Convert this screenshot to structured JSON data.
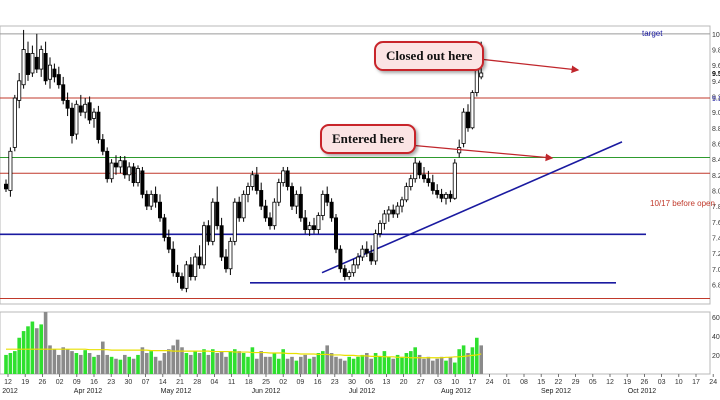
{
  "chart_data": {
    "type": "candlestick",
    "price_axis": {
      "ylim": [
        6.55,
        10.1
      ],
      "ticks": [
        "10.",
        "9.8",
        "9.6",
        "9.4",
        "9.2",
        "9.0",
        "8.8",
        "8.6",
        "8.4",
        "8.2",
        "8.0",
        "7.8",
        "7.6",
        "7.4",
        "7.2",
        "7.0",
        "6.8"
      ]
    },
    "volume_axis": {
      "ylim": [
        0,
        65
      ],
      "ticks": [
        "60",
        "40",
        "20"
      ]
    },
    "x_ticks": [
      "12",
      "19",
      "26",
      "02",
      "09",
      "16",
      "23",
      "30",
      "07",
      "14",
      "21",
      "28",
      "04",
      "11",
      "18",
      "25",
      "02",
      "09",
      "16",
      "23",
      "30",
      "06",
      "13",
      "20",
      "27",
      "03",
      "10",
      "17",
      "24",
      "01",
      "08",
      "15",
      "22",
      "29",
      "05",
      "12",
      "19",
      "26",
      "03",
      "10",
      "17",
      "24"
    ],
    "month_labels": [
      "2012",
      "Apr 2012",
      "May 2012",
      "Jun 2012",
      "Jul 2012",
      "Aug 2012",
      "Sep 2012",
      "Oct 2012"
    ],
    "candles": [
      {
        "o": 8.08,
        "h": 8.14,
        "l": 7.98,
        "c": 8.02
      },
      {
        "o": 8.0,
        "h": 8.55,
        "l": 7.92,
        "c": 8.5
      },
      {
        "o": 8.55,
        "h": 9.22,
        "l": 8.5,
        "c": 9.18
      },
      {
        "o": 9.15,
        "h": 9.5,
        "l": 9.05,
        "c": 9.4
      },
      {
        "o": 9.35,
        "h": 10.05,
        "l": 9.3,
        "c": 9.8
      },
      {
        "o": 9.75,
        "h": 9.9,
        "l": 9.4,
        "c": 9.48
      },
      {
        "o": 9.5,
        "h": 9.85,
        "l": 9.45,
        "c": 9.75
      },
      {
        "o": 9.7,
        "h": 10.0,
        "l": 9.5,
        "c": 9.55
      },
      {
        "o": 9.55,
        "h": 9.85,
        "l": 9.45,
        "c": 9.8
      },
      {
        "o": 9.75,
        "h": 9.9,
        "l": 9.35,
        "c": 9.4
      },
      {
        "o": 9.42,
        "h": 9.7,
        "l": 9.3,
        "c": 9.6
      },
      {
        "o": 9.55,
        "h": 9.62,
        "l": 9.38,
        "c": 9.45
      },
      {
        "o": 9.48,
        "h": 9.58,
        "l": 9.3,
        "c": 9.35
      },
      {
        "o": 9.35,
        "h": 9.45,
        "l": 9.1,
        "c": 9.15
      },
      {
        "o": 9.15,
        "h": 9.25,
        "l": 8.95,
        "c": 9.05
      },
      {
        "o": 9.05,
        "h": 9.12,
        "l": 8.6,
        "c": 8.7
      },
      {
        "o": 8.72,
        "h": 9.15,
        "l": 8.65,
        "c": 9.1
      },
      {
        "o": 9.08,
        "h": 9.22,
        "l": 8.95,
        "c": 9.0
      },
      {
        "o": 9.0,
        "h": 9.18,
        "l": 8.92,
        "c": 9.1
      },
      {
        "o": 9.12,
        "h": 9.2,
        "l": 8.85,
        "c": 8.9
      },
      {
        "o": 8.92,
        "h": 9.05,
        "l": 8.8,
        "c": 9.0
      },
      {
        "o": 9.0,
        "h": 9.08,
        "l": 8.6,
        "c": 8.65
      },
      {
        "o": 8.65,
        "h": 8.72,
        "l": 8.45,
        "c": 8.5
      },
      {
        "o": 8.5,
        "h": 8.55,
        "l": 8.1,
        "c": 8.15
      },
      {
        "o": 8.15,
        "h": 8.4,
        "l": 8.1,
        "c": 8.35
      },
      {
        "o": 8.35,
        "h": 8.45,
        "l": 8.2,
        "c": 8.3
      },
      {
        "o": 8.3,
        "h": 8.44,
        "l": 8.22,
        "c": 8.38
      },
      {
        "o": 8.38,
        "h": 8.44,
        "l": 8.15,
        "c": 8.2
      },
      {
        "o": 8.2,
        "h": 8.36,
        "l": 8.12,
        "c": 8.3
      },
      {
        "o": 8.3,
        "h": 8.35,
        "l": 8.05,
        "c": 8.1
      },
      {
        "o": 8.1,
        "h": 8.32,
        "l": 8.05,
        "c": 8.28
      },
      {
        "o": 8.25,
        "h": 8.3,
        "l": 7.9,
        "c": 7.95
      },
      {
        "o": 7.95,
        "h": 8.0,
        "l": 7.75,
        "c": 7.8
      },
      {
        "o": 7.8,
        "h": 8.0,
        "l": 7.75,
        "c": 7.95
      },
      {
        "o": 7.95,
        "h": 8.05,
        "l": 7.78,
        "c": 7.85
      },
      {
        "o": 7.85,
        "h": 7.95,
        "l": 7.6,
        "c": 7.65
      },
      {
        "o": 7.65,
        "h": 7.7,
        "l": 7.35,
        "c": 7.4
      },
      {
        "o": 7.4,
        "h": 7.5,
        "l": 7.2,
        "c": 7.25
      },
      {
        "o": 7.25,
        "h": 7.35,
        "l": 6.9,
        "c": 6.95
      },
      {
        "o": 6.95,
        "h": 7.05,
        "l": 6.82,
        "c": 6.9
      },
      {
        "o": 6.9,
        "h": 6.95,
        "l": 6.72,
        "c": 6.75
      },
      {
        "o": 6.75,
        "h": 7.1,
        "l": 6.7,
        "c": 7.05
      },
      {
        "o": 7.05,
        "h": 7.15,
        "l": 6.85,
        "c": 6.9
      },
      {
        "o": 6.9,
        "h": 7.2,
        "l": 6.85,
        "c": 7.15
      },
      {
        "o": 7.15,
        "h": 7.3,
        "l": 7.0,
        "c": 7.05
      },
      {
        "o": 7.05,
        "h": 7.6,
        "l": 7.0,
        "c": 7.55
      },
      {
        "o": 7.55,
        "h": 7.62,
        "l": 7.3,
        "c": 7.35
      },
      {
        "o": 7.35,
        "h": 7.9,
        "l": 7.3,
        "c": 7.85
      },
      {
        "o": 7.85,
        "h": 8.05,
        "l": 7.5,
        "c": 7.55
      },
      {
        "o": 7.55,
        "h": 7.65,
        "l": 7.1,
        "c": 7.15
      },
      {
        "o": 7.15,
        "h": 7.25,
        "l": 6.95,
        "c": 7.0
      },
      {
        "o": 7.0,
        "h": 7.4,
        "l": 6.92,
        "c": 7.35
      },
      {
        "o": 7.35,
        "h": 7.9,
        "l": 7.3,
        "c": 7.85
      },
      {
        "o": 7.85,
        "h": 7.92,
        "l": 7.6,
        "c": 7.65
      },
      {
        "o": 7.65,
        "h": 8.0,
        "l": 7.6,
        "c": 7.95
      },
      {
        "o": 7.95,
        "h": 8.1,
        "l": 7.85,
        "c": 8.05
      },
      {
        "o": 8.05,
        "h": 8.25,
        "l": 8.0,
        "c": 8.2
      },
      {
        "o": 8.2,
        "h": 8.3,
        "l": 7.95,
        "c": 8.0
      },
      {
        "o": 8.0,
        "h": 8.1,
        "l": 7.75,
        "c": 7.8
      },
      {
        "o": 7.8,
        "h": 7.88,
        "l": 7.6,
        "c": 7.65
      },
      {
        "o": 7.65,
        "h": 7.72,
        "l": 7.5,
        "c": 7.55
      },
      {
        "o": 7.55,
        "h": 7.9,
        "l": 7.5,
        "c": 7.85
      },
      {
        "o": 7.85,
        "h": 8.15,
        "l": 7.8,
        "c": 8.1
      },
      {
        "o": 8.1,
        "h": 8.3,
        "l": 8.05,
        "c": 8.25
      },
      {
        "o": 8.25,
        "h": 8.3,
        "l": 8.0,
        "c": 8.05
      },
      {
        "o": 8.05,
        "h": 8.1,
        "l": 7.75,
        "c": 7.8
      },
      {
        "o": 7.8,
        "h": 8.0,
        "l": 7.7,
        "c": 7.95
      },
      {
        "o": 7.95,
        "h": 8.05,
        "l": 7.6,
        "c": 7.65
      },
      {
        "o": 7.65,
        "h": 7.75,
        "l": 7.45,
        "c": 7.5
      },
      {
        "o": 7.5,
        "h": 7.6,
        "l": 7.42,
        "c": 7.55
      },
      {
        "o": 7.55,
        "h": 7.65,
        "l": 7.45,
        "c": 7.5
      },
      {
        "o": 7.5,
        "h": 7.72,
        "l": 7.45,
        "c": 7.68
      },
      {
        "o": 7.68,
        "h": 8.0,
        "l": 7.62,
        "c": 7.95
      },
      {
        "o": 7.95,
        "h": 8.05,
        "l": 7.8,
        "c": 7.85
      },
      {
        "o": 7.85,
        "h": 7.9,
        "l": 7.6,
        "c": 7.65
      },
      {
        "o": 7.65,
        "h": 7.7,
        "l": 7.2,
        "c": 7.25
      },
      {
        "o": 7.25,
        "h": 7.3,
        "l": 6.95,
        "c": 7.0
      },
      {
        "o": 7.0,
        "h": 7.05,
        "l": 6.85,
        "c": 6.9
      },
      {
        "o": 6.9,
        "h": 6.98,
        "l": 6.86,
        "c": 6.95
      },
      {
        "o": 6.95,
        "h": 7.12,
        "l": 6.9,
        "c": 7.05
      },
      {
        "o": 7.05,
        "h": 7.2,
        "l": 7.0,
        "c": 7.15
      },
      {
        "o": 7.15,
        "h": 7.3,
        "l": 7.1,
        "c": 7.25
      },
      {
        "o": 7.25,
        "h": 7.35,
        "l": 7.15,
        "c": 7.2
      },
      {
        "o": 7.2,
        "h": 7.3,
        "l": 7.05,
        "c": 7.1
      },
      {
        "o": 7.1,
        "h": 7.5,
        "l": 7.05,
        "c": 7.45
      },
      {
        "o": 7.45,
        "h": 7.62,
        "l": 7.4,
        "c": 7.58
      },
      {
        "o": 7.58,
        "h": 7.75,
        "l": 7.5,
        "c": 7.7
      },
      {
        "o": 7.7,
        "h": 7.8,
        "l": 7.6,
        "c": 7.75
      },
      {
        "o": 7.75,
        "h": 7.82,
        "l": 7.65,
        "c": 7.7
      },
      {
        "o": 7.7,
        "h": 7.85,
        "l": 7.65,
        "c": 7.8
      },
      {
        "o": 7.8,
        "h": 7.92,
        "l": 7.72,
        "c": 7.88
      },
      {
        "o": 7.88,
        "h": 8.1,
        "l": 7.85,
        "c": 8.05
      },
      {
        "o": 8.05,
        "h": 8.2,
        "l": 8.0,
        "c": 8.15
      },
      {
        "o": 8.15,
        "h": 8.42,
        "l": 8.1,
        "c": 8.35
      },
      {
        "o": 8.35,
        "h": 8.38,
        "l": 8.15,
        "c": 8.2
      },
      {
        "o": 8.2,
        "h": 8.3,
        "l": 8.1,
        "c": 8.15
      },
      {
        "o": 8.15,
        "h": 8.25,
        "l": 8.05,
        "c": 8.1
      },
      {
        "o": 8.1,
        "h": 8.2,
        "l": 7.95,
        "c": 8.0
      },
      {
        "o": 8.0,
        "h": 8.08,
        "l": 7.9,
        "c": 7.95
      },
      {
        "o": 7.95,
        "h": 8.02,
        "l": 7.85,
        "c": 7.9
      },
      {
        "o": 7.9,
        "h": 7.98,
        "l": 7.82,
        "c": 7.95
      },
      {
        "o": 7.95,
        "h": 8.0,
        "l": 7.85,
        "c": 7.9
      },
      {
        "o": 7.9,
        "h": 8.4,
        "l": 7.88,
        "c": 8.35
      },
      {
        "o": 8.48,
        "h": 8.65,
        "l": 8.42,
        "c": 8.55
      },
      {
        "o": 8.6,
        "h": 9.05,
        "l": 8.55,
        "c": 9.0
      },
      {
        "o": 9.0,
        "h": 9.1,
        "l": 8.75,
        "c": 8.8
      },
      {
        "o": 8.8,
        "h": 9.28,
        "l": 8.78,
        "c": 9.25
      },
      {
        "o": 9.25,
        "h": 9.7,
        "l": 9.2,
        "c": 9.6
      },
      {
        "o": 9.45,
        "h": 9.9,
        "l": 9.42,
        "c": 9.5
      }
    ],
    "volume": [
      20,
      22,
      24,
      38,
      45,
      50,
      55,
      48,
      52,
      65,
      30,
      26,
      20,
      28,
      26,
      24,
      22,
      20,
      25,
      22,
      18,
      20,
      34,
      20,
      18,
      16,
      15,
      20,
      18,
      16,
      20,
      28,
      22,
      24,
      18,
      14,
      22,
      26,
      30,
      36,
      28,
      22,
      20,
      24,
      22,
      26,
      20,
      26,
      22,
      24,
      18,
      24,
      26,
      24,
      22,
      18,
      28,
      16,
      24,
      18,
      18,
      22,
      16,
      26,
      16,
      18,
      14,
      18,
      20,
      16,
      18,
      22,
      24,
      30,
      22,
      18,
      16,
      14,
      18,
      16,
      18,
      20,
      22,
      16,
      22,
      18,
      24,
      18,
      16,
      20,
      18,
      22,
      24,
      28,
      20,
      16,
      18,
      14,
      16,
      18,
      14,
      18,
      12,
      26,
      30,
      22,
      28,
      38,
      30
    ],
    "volume_bar_colors": [
      "G",
      "G",
      "G",
      "G",
      "G",
      "G",
      "G",
      "R",
      "G",
      "R",
      "R",
      "R",
      "R",
      "R",
      "R",
      "R",
      "G",
      "R",
      "G",
      "R",
      "G",
      "R",
      "R",
      "R",
      "G",
      "R",
      "G",
      "R",
      "G",
      "R",
      "G",
      "R",
      "R",
      "G",
      "R",
      "R",
      "R",
      "R",
      "R",
      "R",
      "R",
      "G",
      "R",
      "G",
      "R",
      "G",
      "R",
      "G",
      "R",
      "R",
      "R",
      "G",
      "G",
      "R",
      "G",
      "G",
      "G",
      "R",
      "R",
      "R",
      "R",
      "G",
      "G",
      "G",
      "R",
      "R",
      "G",
      "R",
      "R",
      "G",
      "R",
      "G",
      "G",
      "R",
      "R",
      "R",
      "R",
      "R",
      "G",
      "G",
      "G",
      "G",
      "R",
      "R",
      "G",
      "G",
      "G",
      "G",
      "R",
      "G",
      "G",
      "G",
      "G",
      "G",
      "R",
      "R",
      "R",
      "R",
      "R",
      "R",
      "G",
      "R",
      "G",
      "G",
      "G",
      "R",
      "G",
      "G",
      "R"
    ],
    "volume_ma": [
      26,
      26,
      26,
      26,
      26,
      26,
      26,
      26,
      26,
      26,
      26,
      26,
      26,
      26,
      26,
      26,
      26,
      26,
      26,
      25.5,
      25.5,
      25.5,
      25.5,
      25.5,
      25,
      25,
      25,
      25,
      25,
      25,
      25,
      25,
      25,
      24.5,
      24.5,
      24.5,
      24.5,
      24.5,
      24,
      24,
      24,
      24,
      24,
      24,
      24,
      24,
      24,
      23.5,
      23.5,
      23.5,
      23.5,
      23.5,
      23,
      23,
      23,
      23,
      22.5,
      22.5,
      22.5,
      22.5,
      22,
      22,
      22,
      22,
      21.5,
      21.5,
      21.5,
      21,
      21,
      21,
      21,
      20.5,
      20.5,
      20.5,
      20,
      20,
      20,
      19.5,
      19.5,
      19.5,
      19,
      19,
      19,
      18.5,
      18.5,
      18.5,
      18,
      18,
      18,
      17.5,
      17.5,
      17.5,
      17,
      17,
      17,
      17,
      17,
      17,
      17,
      17,
      17.5,
      17.5,
      18,
      18,
      18.5,
      19,
      19.5,
      20,
      21
    ],
    "horizontal_levels": [
      {
        "price": 10.0,
        "color": "#9a9a9a"
      },
      {
        "price": 9.18,
        "color": "#c0392b"
      },
      {
        "price": 8.42,
        "color": "#2e9b2e"
      },
      {
        "price": 8.22,
        "color": "#c0392b"
      },
      {
        "price": 7.44,
        "color": "#1a1aa0"
      },
      {
        "price": 6.82,
        "color": "#1a1aa0"
      },
      {
        "price": 6.62,
        "color": "#c0392b"
      }
    ],
    "trendline": {
      "from": {
        "bar": 70,
        "price": 6.95
      },
      "to": {
        "bar": 128,
        "price": 8.62
      },
      "color": "#1a1aa0"
    },
    "price_label_right": "9.6",
    "annotations": {
      "target": "target",
      "before_open": "10/17 before open",
      "entered": "Entered here",
      "closed": "Closed out here"
    },
    "last_price_tag": "9.5",
    "prev_level_tag": "9.1"
  }
}
